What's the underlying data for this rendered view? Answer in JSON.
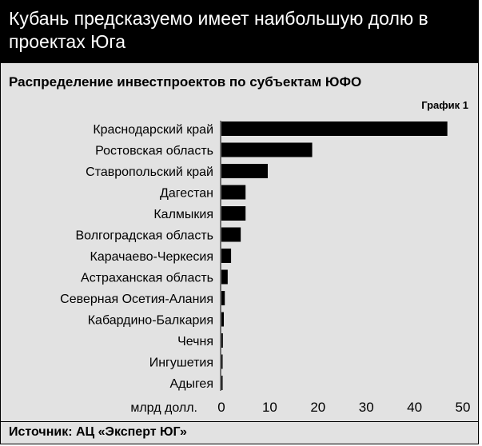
{
  "headline": "Кубань предсказуемо имеет наибольшую долю в проектах Юга",
  "chart_label": "График 1",
  "source": "Источник: АЦ «Эксперт ЮГ»",
  "colors": {
    "bar": "#000000",
    "background": "#e2e2e2",
    "banner": "#000000"
  },
  "chart_data": {
    "type": "bar",
    "orientation": "horizontal",
    "title": "Распределение инвестпроектов по субъектам ЮФО",
    "xlabel": "млрд долл.",
    "xlim": [
      0,
      50
    ],
    "xticks": [
      0,
      10,
      20,
      30,
      40,
      50
    ],
    "grid": false,
    "categories": [
      "Краснодарский край",
      "Ростовская область",
      "Ставропольский край",
      "Дагестан",
      "Калмыкия",
      "Волгоградская область",
      "Карачаево-Черкесия",
      "Астраханская область",
      "Северная Осетия-Алания",
      "Кабардино-Балкария",
      "Чечня",
      "Ингушетия",
      "Адыгея"
    ],
    "values": [
      46.8,
      18.8,
      9.6,
      5.0,
      5.0,
      4.0,
      2.0,
      1.3,
      0.7,
      0.5,
      0.3,
      0.2,
      0.15
    ]
  }
}
